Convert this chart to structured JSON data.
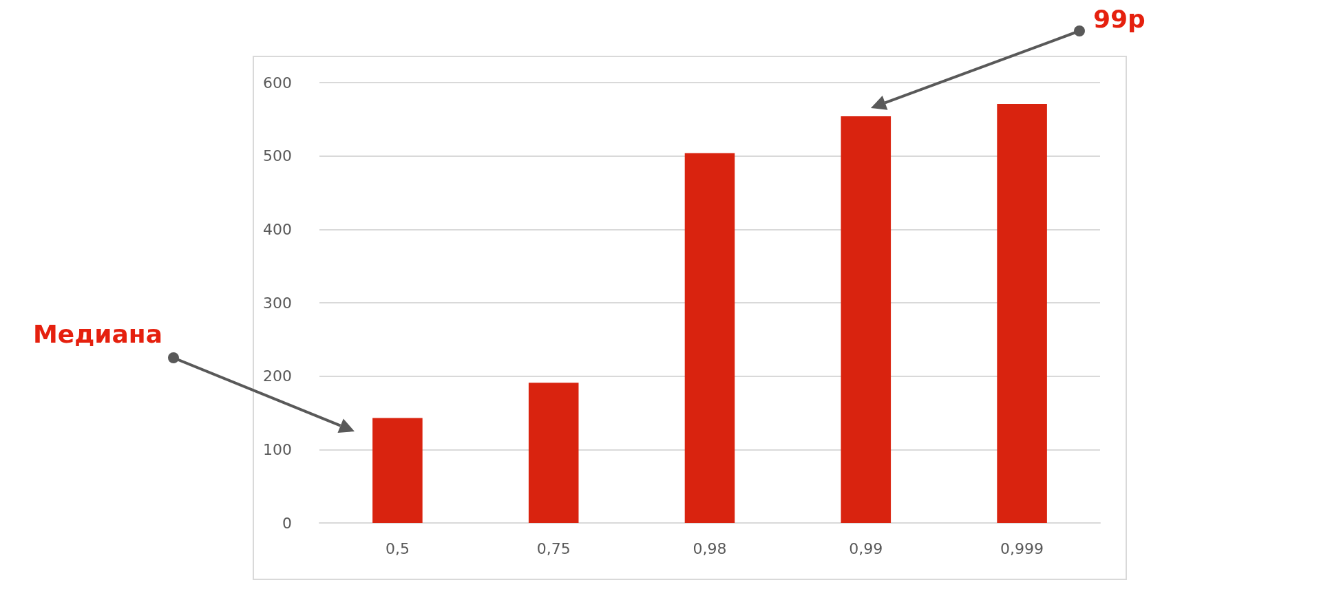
{
  "chart_data": {
    "type": "bar",
    "categories": [
      "0,5",
      "0,75",
      "0,98",
      "0,99",
      "0,999"
    ],
    "values": [
      143,
      191,
      504,
      554,
      571
    ],
    "color": "#d9230f",
    "ylim": [
      0,
      600
    ],
    "yticks": [
      0,
      100,
      200,
      300,
      400,
      500,
      600
    ],
    "grid": "y",
    "annotations": [
      "Медиана",
      "99p"
    ]
  }
}
